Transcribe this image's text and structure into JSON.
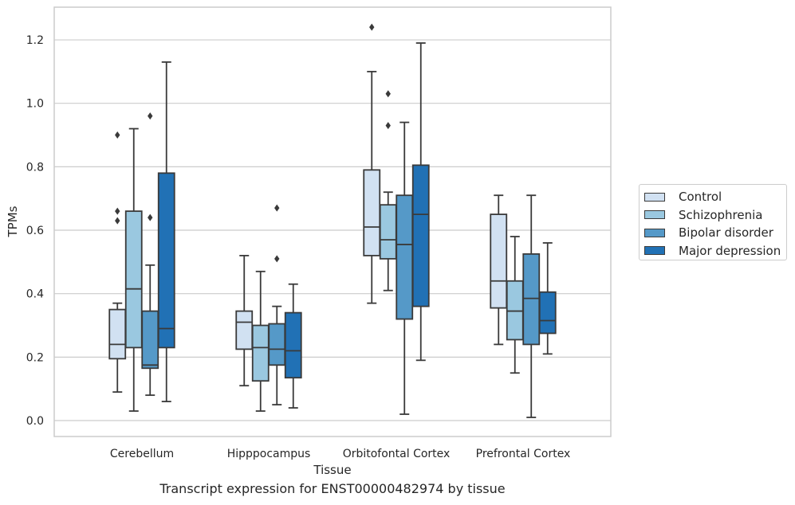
{
  "caption": "Transcript expression for ENST00000482974 by tissue",
  "chart_data": {
    "type": "box",
    "title": "",
    "xlabel": "Tissue",
    "ylabel": "TPMs",
    "ylim": [
      -0.05,
      1.3
    ],
    "yticks": [
      0.0,
      0.2,
      0.4,
      0.6,
      0.8,
      1.0,
      1.2
    ],
    "ytick_labels": [
      "0.0",
      "0.2",
      "0.4",
      "0.6",
      "0.8",
      "1.0",
      "1.2"
    ],
    "grid": "horizontal",
    "legend_position": "right",
    "categories": [
      "Cerebellum",
      "Hipppocampus",
      "Orbitofontal Cortex",
      "Prefrontal Cortex"
    ],
    "series": [
      {
        "name": "Control",
        "color": "#d1e1f2",
        "boxes": [
          {
            "whisker_low": 0.09,
            "q1": 0.195,
            "median": 0.24,
            "q3": 0.35,
            "whisker_high": 0.37,
            "outliers": [
              0.63,
              0.66,
              0.9
            ]
          },
          {
            "whisker_low": 0.11,
            "q1": 0.225,
            "median": 0.31,
            "q3": 0.345,
            "whisker_high": 0.52,
            "outliers": []
          },
          {
            "whisker_low": 0.37,
            "q1": 0.52,
            "median": 0.61,
            "q3": 0.79,
            "whisker_high": 1.1,
            "outliers": [
              1.24
            ]
          },
          {
            "whisker_low": 0.24,
            "q1": 0.355,
            "median": 0.44,
            "q3": 0.65,
            "whisker_high": 0.71,
            "outliers": []
          }
        ]
      },
      {
        "name": "Schizophrenia",
        "color": "#9ac8e0",
        "boxes": [
          {
            "whisker_low": 0.03,
            "q1": 0.23,
            "median": 0.415,
            "q3": 0.66,
            "whisker_high": 0.92,
            "outliers": []
          },
          {
            "whisker_low": 0.03,
            "q1": 0.125,
            "median": 0.23,
            "q3": 0.3,
            "whisker_high": 0.47,
            "outliers": []
          },
          {
            "whisker_low": 0.41,
            "q1": 0.51,
            "median": 0.57,
            "q3": 0.68,
            "whisker_high": 0.72,
            "outliers": [
              0.93,
              1.03
            ]
          },
          {
            "whisker_low": 0.15,
            "q1": 0.255,
            "median": 0.345,
            "q3": 0.44,
            "whisker_high": 0.58,
            "outliers": []
          }
        ]
      },
      {
        "name": "Bipolar disorder",
        "color": "#5599c8",
        "boxes": [
          {
            "whisker_low": 0.08,
            "q1": 0.165,
            "median": 0.175,
            "q3": 0.345,
            "whisker_high": 0.49,
            "outliers": [
              0.64,
              0.96
            ]
          },
          {
            "whisker_low": 0.05,
            "q1": 0.175,
            "median": 0.225,
            "q3": 0.305,
            "whisker_high": 0.36,
            "outliers": [
              0.51,
              0.67
            ]
          },
          {
            "whisker_low": 0.02,
            "q1": 0.32,
            "median": 0.555,
            "q3": 0.71,
            "whisker_high": 0.94,
            "outliers": []
          },
          {
            "whisker_low": 0.01,
            "q1": 0.24,
            "median": 0.385,
            "q3": 0.525,
            "whisker_high": 0.71,
            "outliers": []
          }
        ]
      },
      {
        "name": "Major depression",
        "color": "#2171b5",
        "boxes": [
          {
            "whisker_low": 0.06,
            "q1": 0.23,
            "median": 0.29,
            "q3": 0.78,
            "whisker_high": 1.13,
            "outliers": []
          },
          {
            "whisker_low": 0.04,
            "q1": 0.135,
            "median": 0.22,
            "q3": 0.34,
            "whisker_high": 0.43,
            "outliers": []
          },
          {
            "whisker_low": 0.19,
            "q1": 0.36,
            "median": 0.65,
            "q3": 0.805,
            "whisker_high": 1.19,
            "outliers": []
          },
          {
            "whisker_low": 0.21,
            "q1": 0.275,
            "median": 0.315,
            "q3": 0.405,
            "whisker_high": 0.56,
            "outliers": []
          }
        ]
      }
    ]
  },
  "style": {
    "grid_color": "#cccccc",
    "frame_color": "#cccccc",
    "line_color": "#3a3a3a"
  }
}
